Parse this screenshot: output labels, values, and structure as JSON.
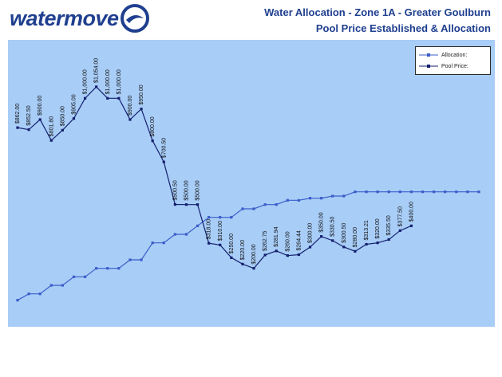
{
  "header": {
    "logo": "watermove",
    "title": "Water Allocation - Zone 1A - Greater Goulburn",
    "subtitle": "Pool Price Established & Allocation"
  },
  "colors": {
    "plot_bg": "#a8cdf7",
    "allocation_line": "#3b5dc9",
    "price_line": "#14206e",
    "title": "#1f3f8f"
  },
  "chart_data": {
    "type": "line",
    "legend_position": "top-right",
    "grid": false,
    "x": [
      1,
      2,
      3,
      4,
      5,
      6,
      7,
      8,
      9,
      10,
      11,
      12,
      13,
      14,
      15,
      16,
      17,
      18,
      19,
      20,
      21,
      22,
      23,
      24,
      25,
      26,
      27,
      28,
      29,
      30,
      31,
      32,
      33,
      34,
      35,
      36,
      37,
      38,
      39,
      40,
      41,
      42
    ],
    "ylim": [
      0,
      1200
    ],
    "series": [
      {
        "name": "Allocation:",
        "values": [
          50,
          80,
          80,
          120,
          120,
          160,
          160,
          200,
          200,
          200,
          240,
          240,
          320,
          320,
          360,
          360,
          400,
          440,
          440,
          440,
          480,
          480,
          500,
          500,
          520,
          520,
          530,
          530,
          540,
          540,
          560,
          560,
          560,
          560,
          560,
          560,
          560,
          560,
          560,
          560,
          560,
          560
        ]
      },
      {
        "name": "Pool Price:",
        "values": [
          862,
          852.5,
          900,
          801.8,
          850,
          905,
          1000,
          1054,
          1000,
          1000,
          900,
          950,
          800,
          700.5,
          500.5,
          500,
          500,
          null,
          null,
          null,
          null,
          null,
          null,
          null,
          null,
          null,
          null,
          null,
          null,
          null,
          null,
          null,
          null,
          null,
          null,
          null,
          null,
          null,
          null,
          null,
          null,
          null
        ]
      }
    ],
    "price_late": {
      "x": [
        18,
        19,
        20,
        21,
        22,
        23,
        24,
        25,
        26,
        27,
        28,
        29,
        30,
        31,
        32,
        33,
        34,
        35,
        36,
        37,
        38,
        39,
        40,
        41
      ],
      "values": [
        318,
        310,
        250,
        220,
        200,
        262.75,
        281.94,
        260,
        264.44,
        300,
        350,
        330.5,
        300.5,
        280,
        313.21,
        320,
        335.5,
        377.5,
        400,
        null,
        null,
        null,
        null,
        null
      ]
    },
    "point_labels": [
      "$862.00",
      "$852.50",
      "$900.00",
      "$801.80",
      "$850.00",
      "$905.00",
      "$1,000.00",
      "$1,054.00",
      "$1,000.00",
      "$1,000.00",
      "$900.00",
      "$950.00",
      "$800.00",
      "$700.50",
      "$500.50",
      "$500.00",
      "$500.00",
      "$318.00",
      "$310.00",
      "$250.00",
      "$220.00",
      "$200.00",
      "$262.75",
      "$281.94",
      "$260.00",
      "$264.44",
      "$300.00",
      "$350.00",
      "$330.50",
      "$300.50",
      "$280.00",
      "$313.21",
      "$320.00",
      "$335.50",
      "$377.50",
      "$400.00"
    ]
  }
}
